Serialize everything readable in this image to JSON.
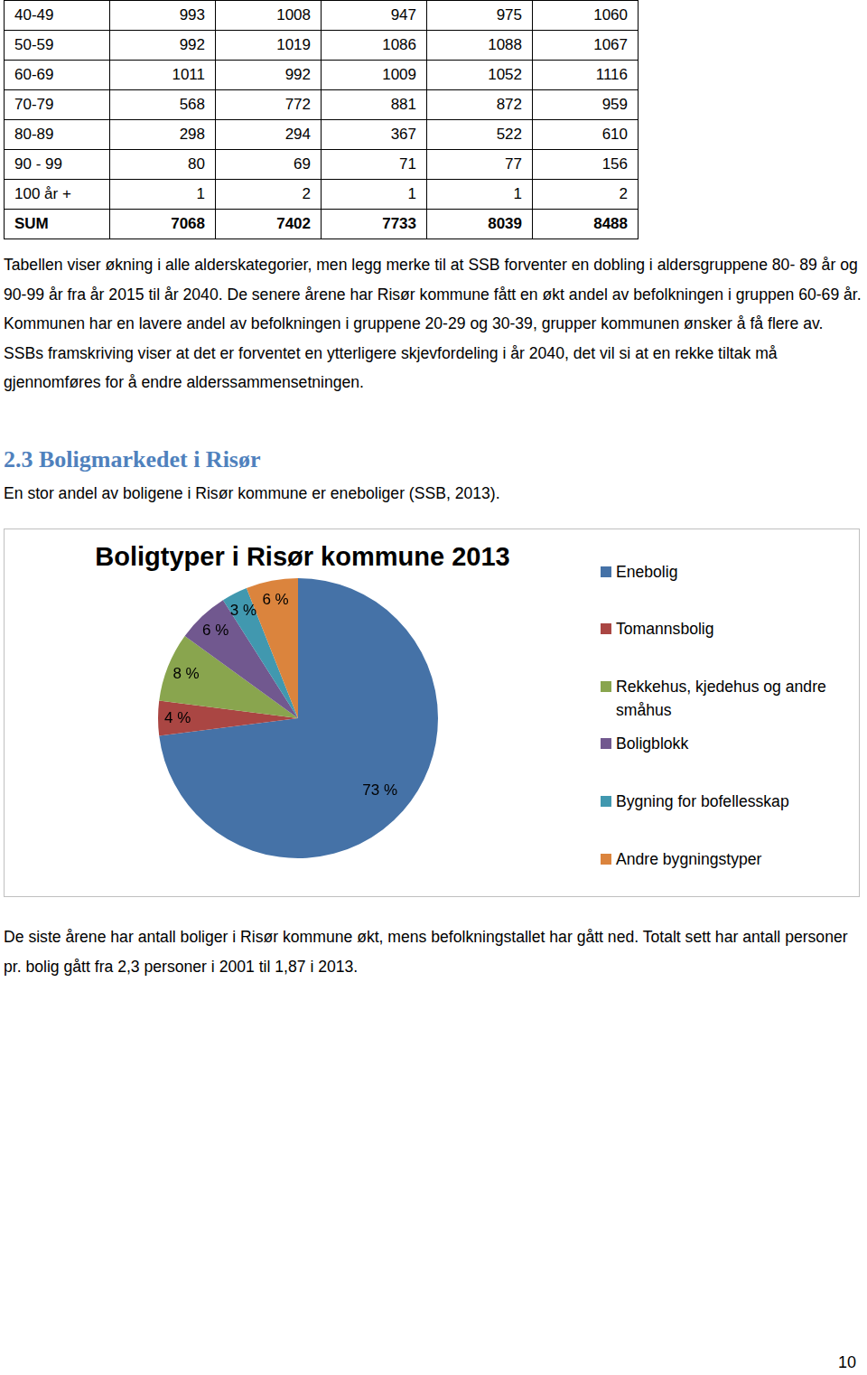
{
  "table": {
    "rows": [
      [
        "40-49",
        993,
        1008,
        947,
        975,
        1060
      ],
      [
        "50-59",
        992,
        1019,
        1086,
        1088,
        1067
      ],
      [
        "60-69",
        1011,
        992,
        1009,
        1052,
        1116
      ],
      [
        "70-79",
        568,
        772,
        881,
        872,
        959
      ],
      [
        "80-89",
        298,
        294,
        367,
        522,
        610
      ],
      [
        "90 - 99",
        80,
        69,
        71,
        77,
        156
      ],
      [
        "100 år +",
        1,
        2,
        1,
        1,
        2
      ],
      [
        "SUM",
        7068,
        7402,
        7733,
        8039,
        8488
      ]
    ]
  },
  "paragraph_1": "Tabellen viser økning i alle alderskategorier, men legg merke til at SSB forventer en dobling i aldersgruppene 80- 89 år og 90-99 år fra år 2015 til år 2040. De senere årene har Risør kommune fått en økt andel av befolkningen i gruppen 60-69 år. Kommunen har en lavere andel av befolkningen i gruppene 20-29 og 30-39, grupper kommunen ønsker å få flere av. SSBs framskriving viser at det er forventet en ytterligere skjevfordeling i år 2040, det vil si at en rekke tiltak må gjennomføres for å endre alderssammensetningen.",
  "heading": "2.3 Boligmarkedet i Risør",
  "paragraph_2": "En stor andel av boligene i Risør kommune er eneboliger (SSB, 2013).",
  "chart_data": {
    "type": "pie",
    "title": "Boligtyper i Risør kommune 2013",
    "categories": [
      "Enebolig",
      "Tomannsbolig",
      "Rekkehus, kjedehus og andre småhus",
      "Boligblokk",
      "Bygning for bofellesskap",
      "Andre bygningstyper"
    ],
    "values": [
      73,
      4,
      8,
      6,
      3,
      6
    ],
    "value_labels": [
      "73 %",
      "4 %",
      "8 %",
      "6 %",
      "3 %",
      "6 %"
    ],
    "colors": [
      "#4572a7",
      "#aa4643",
      "#89a54e",
      "#71588f",
      "#4198af",
      "#db843d"
    ],
    "data_labels": true,
    "legend": "right"
  },
  "paragraph_3": "De siste årene har antall boliger i Risør kommune økt, mens befolkningstallet har gått ned. Totalt sett har antall personer pr. bolig gått fra 2,3 personer i 2001 til 1,87 i 2013.",
  "page_number": 10
}
